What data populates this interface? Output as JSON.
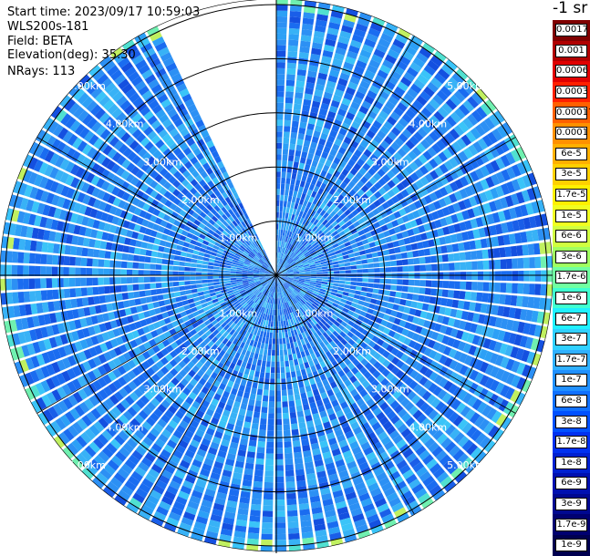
{
  "header": {
    "start_time": "Start time: 2023/09/17 10:59:03",
    "instrument": "WLS200s-181",
    "field": "Field: BETA",
    "elevation": "Elevation(deg): 35.30",
    "nrays": "NRays: 113"
  },
  "colorbar": {
    "title": "-1 sr",
    "labels": [
      "0.0017",
      "0.001",
      "0.0006",
      "0.0003",
      "0.00017",
      "0.0001",
      "6e-5",
      "3e-5",
      "1.7e-5",
      "1e-5",
      "6e-6",
      "3e-6",
      "1.7e-6",
      "1e-6",
      "6e-7",
      "3e-7",
      "1.7e-7",
      "1e-7",
      "6e-8",
      "3e-8",
      "1.7e-8",
      "1e-8",
      "6e-9",
      "3e-9",
      "1.7e-9",
      "1e-9"
    ],
    "colors": [
      "#7f0000",
      "#b00000",
      "#e00000",
      "#ff2000",
      "#ff6000",
      "#ff9000",
      "#ffb000",
      "#ffd000",
      "#fff000",
      "#f0ff20",
      "#d0ff40",
      "#a0ff60",
      "#70ffa0",
      "#40ffd0",
      "#20f0ff",
      "#30d0ff",
      "#30b0ff",
      "#2090ff",
      "#1070ff",
      "#0050ff",
      "#0030f0",
      "#0020d0",
      "#0010b0",
      "#000890",
      "#000070",
      "#000050"
    ]
  },
  "chart_data": {
    "type": "heatmap",
    "projection": "polar (PPI scan)",
    "field": "BETA",
    "units": "-1 sr",
    "nrays": 113,
    "elevation_deg": 35.3,
    "range_rings_km": [
      1.0,
      2.0,
      3.0,
      4.0,
      5.0
    ],
    "range_ring_labels": [
      "1.00km",
      "2.00km",
      "3.00km",
      "4.00km",
      "5.00km"
    ],
    "max_range_km": 5.6,
    "missing_sector_deg": [
      335,
      360
    ],
    "dominant_value_range": [
      "1e-8",
      "1e-7"
    ],
    "dominant_colors": [
      "#1a6cf0",
      "#2c90f4",
      "#38b2f6",
      "#1450e0"
    ]
  }
}
